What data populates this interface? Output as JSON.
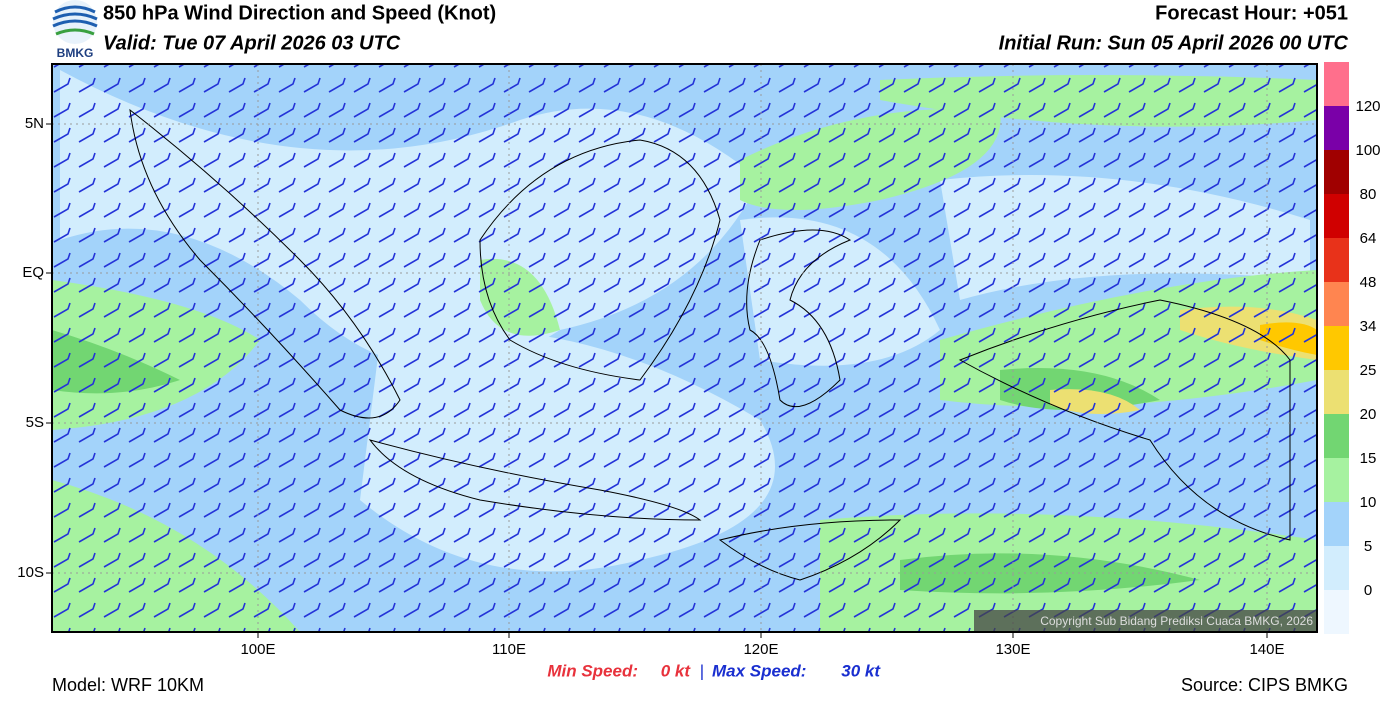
{
  "header": {
    "title": "850 hPa Wind Direction and Speed (Knot)",
    "valid": "Valid: Tue 07 April 2026 03 UTC",
    "forecast_hour": "Forecast Hour: +051",
    "initial_run": "Initial Run: Sun 05 April 2026 00 UTC",
    "logo_text": "BMKG"
  },
  "map": {
    "lat_labels": [
      "5N",
      "EQ",
      "5S",
      "10S"
    ],
    "lon_labels": [
      "100E",
      "110E",
      "120E",
      "130E",
      "140E"
    ],
    "copyright": "Copyright Sub Bidang Prediksi Cuaca BMKG, 2026"
  },
  "colorbar": {
    "labels": [
      "120",
      "100",
      "80",
      "64",
      "48",
      "34",
      "25",
      "20",
      "15",
      "10",
      "5",
      "0"
    ],
    "colors": [
      "#ff6f8c",
      "#7a00a8",
      "#a00000",
      "#d00000",
      "#e8321a",
      "#ff8550",
      "#ffc800",
      "#ece072",
      "#72d672",
      "#a6f2a0",
      "#a3d3fa",
      "#d2edfd",
      "#eef7ff"
    ]
  },
  "footer": {
    "model": "Model: WRF 10KM",
    "min_label": "Min Speed:",
    "min_value": "0 kt",
    "separator": "|",
    "max_label": "Max Speed:",
    "max_value": "30 kt",
    "source": "Source: CIPS BMKG"
  }
}
